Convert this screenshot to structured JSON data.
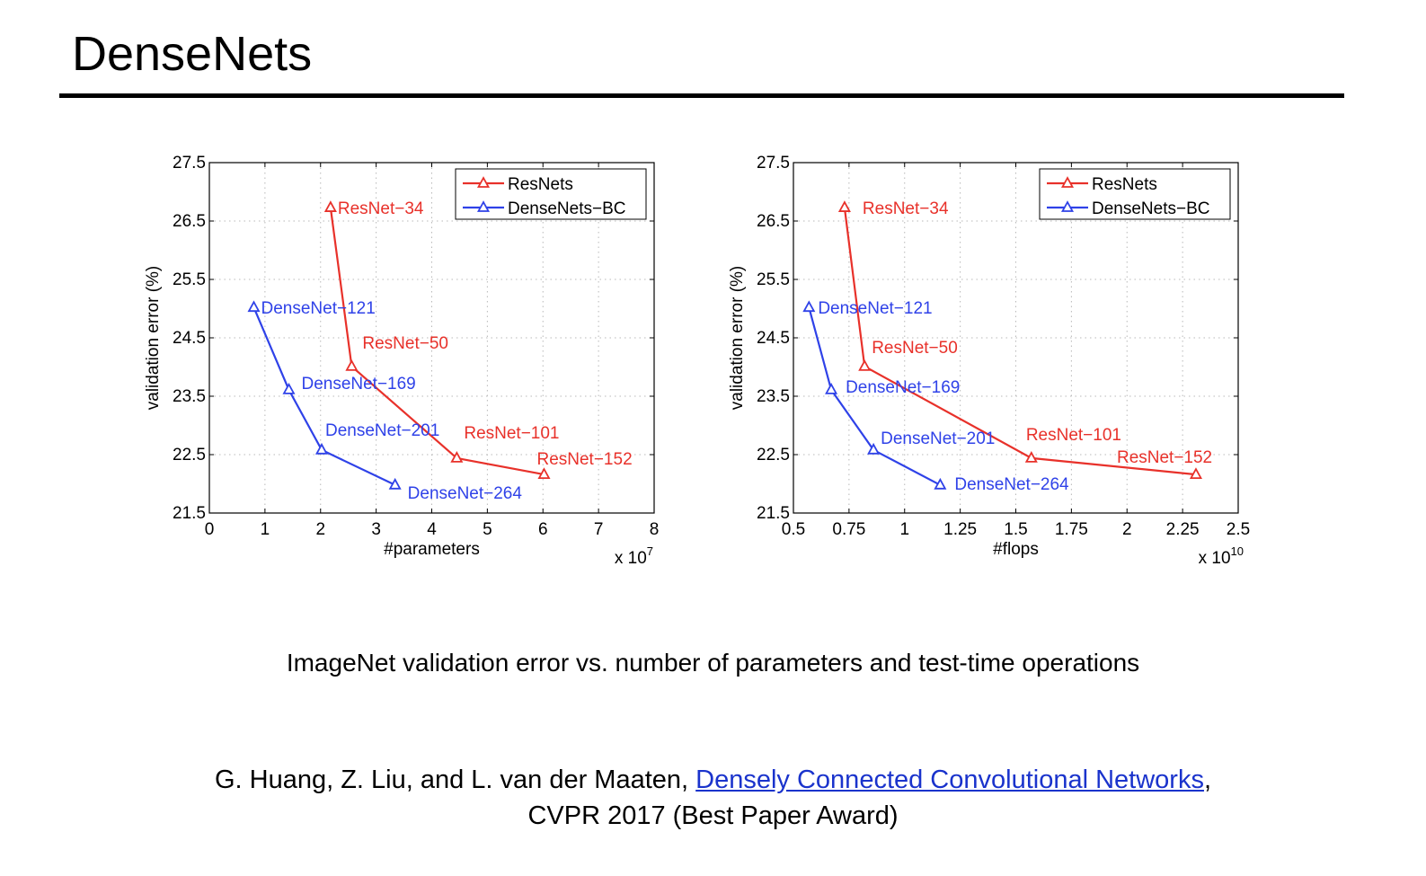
{
  "slide": {
    "title": "DenseNets",
    "caption": "ImageNet validation error vs. number of parameters and test-time operations",
    "citation": {
      "authors": "G. Huang, Z. Liu, and L. van der Maaten, ",
      "link_text": "Densely Connected Convolutional Networks",
      "after_link": ",",
      "venue": "CVPR 2017 (Best Paper Award)"
    }
  },
  "colors": {
    "resnets": "#e8312a",
    "densenets": "#2f42e8"
  },
  "chart_data": [
    {
      "type": "line",
      "xlabel": "#parameters",
      "ylabel": "validation error (%)",
      "x_multiplier": "x 10",
      "x_multiplier_exp": "7",
      "xlim": [
        0,
        8
      ],
      "ylim": [
        21.5,
        27.5
      ],
      "xticks": [
        0,
        1,
        2,
        3,
        4,
        5,
        6,
        7,
        8
      ],
      "xtick_labels": [
        "0",
        "1",
        "2",
        "3",
        "4",
        "5",
        "6",
        "7",
        "8"
      ],
      "yticks": [
        21.5,
        22.5,
        23.5,
        24.5,
        25.5,
        26.5,
        27.5
      ],
      "ytick_labels": [
        "21.5",
        "22.5",
        "23.5",
        "24.5",
        "25.5",
        "26.5",
        "27.5"
      ],
      "grid": true,
      "legend_position": "top-right",
      "series": [
        {
          "name": "ResNets",
          "color": "#e8312a",
          "x": [
            2.18,
            2.56,
            4.45,
            6.02
          ],
          "y": [
            26.73,
            24.01,
            22.44,
            22.16
          ],
          "point_labels": [
            "ResNet−34",
            "ResNet−50",
            "ResNet−101",
            "ResNet−152"
          ]
        },
        {
          "name": "DenseNets−BC",
          "color": "#2f42e8",
          "x": [
            0.8,
            1.43,
            2.02,
            3.34
          ],
          "y": [
            25.02,
            23.61,
            22.58,
            21.98
          ],
          "point_labels": [
            "DenseNet−121",
            "DenseNet−169",
            "DenseNet−201",
            "DenseNet−264"
          ]
        }
      ]
    },
    {
      "type": "line",
      "xlabel": "#flops",
      "ylabel": "validation error (%)",
      "x_multiplier": "x 10",
      "x_multiplier_exp": "10",
      "xlim": [
        0.5,
        2.5
      ],
      "ylim": [
        21.5,
        27.5
      ],
      "xticks": [
        0.5,
        0.75,
        1,
        1.25,
        1.5,
        1.75,
        2,
        2.25,
        2.5
      ],
      "xtick_labels": [
        "0.5",
        "0.75",
        "1",
        "1.25",
        "1.5",
        "1.75",
        "2",
        "2.25",
        "2.5"
      ],
      "yticks": [
        21.5,
        22.5,
        23.5,
        24.5,
        25.5,
        26.5,
        27.5
      ],
      "ytick_labels": [
        "21.5",
        "22.5",
        "23.5",
        "24.5",
        "25.5",
        "26.5",
        "27.5"
      ],
      "grid": true,
      "legend_position": "top-right",
      "series": [
        {
          "name": "ResNets",
          "color": "#e8312a",
          "x": [
            0.73,
            0.82,
            1.57,
            2.31
          ],
          "y": [
            26.73,
            24.01,
            22.44,
            22.16
          ],
          "point_labels": [
            "ResNet−34",
            "ResNet−50",
            "ResNet−101",
            "ResNet−152"
          ]
        },
        {
          "name": "DenseNets−BC",
          "color": "#2f42e8",
          "x": [
            0.57,
            0.67,
            0.86,
            1.16
          ],
          "y": [
            25.02,
            23.61,
            22.58,
            21.98
          ],
          "point_labels": [
            "DenseNet−121",
            "DenseNet−169",
            "DenseNet−201",
            "DenseNet−264"
          ]
        }
      ]
    }
  ]
}
